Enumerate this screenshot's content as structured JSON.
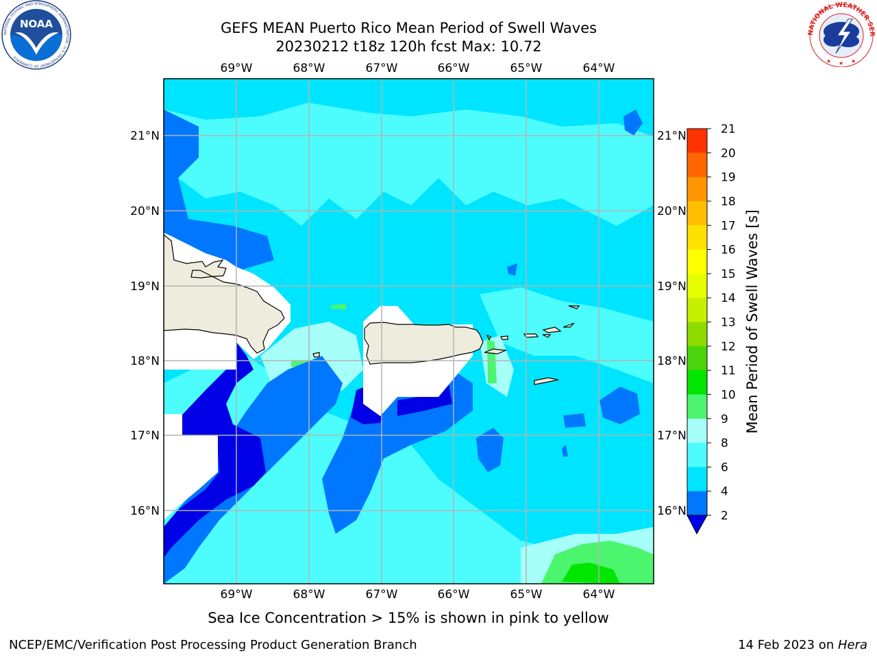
{
  "title": {
    "line1": "GEFS MEAN Puerto Rico Mean Period of Swell Waves",
    "line2": "20230212 t18z 120h fcst   Max: 10.72"
  },
  "map": {
    "lon_labels": [
      "69°W",
      "68°W",
      "67°W",
      "66°W",
      "65°W",
      "64°W"
    ],
    "lat_labels": [
      "21°N",
      "20°N",
      "19°N",
      "18°N",
      "17°N",
      "16°N"
    ],
    "extent": {
      "lon_min": -70.0,
      "lon_max": -63.25,
      "lat_min": 15.0,
      "lat_max": 21.75
    },
    "grid": true,
    "place_labels": {
      "hispaniola": "",
      "puerto_rico": ""
    }
  },
  "colorbar": {
    "title": "Mean Period of Swell Waves [s]",
    "ticks": [
      "21",
      "20",
      "19",
      "18",
      "17",
      "16",
      "15",
      "14",
      "13",
      "12",
      "11",
      "10",
      "9",
      "8",
      "6",
      "4",
      "2"
    ],
    "colors": [
      "#0000e6",
      "#0077ff",
      "#00e5ff",
      "#4dfdfd",
      "#a6fff8",
      "#4cf56e",
      "#00e600",
      "#4ad40b",
      "#8edb00",
      "#c6f000",
      "#e6ff00",
      "#ffff00",
      "#ffe000",
      "#ffbf00",
      "#ff9500",
      "#ff6600",
      "#ff3300",
      "#ff0000"
    ]
  },
  "note": "Sea Ice Concentration > 15% is shown in pink to yellow",
  "footer": {
    "left": "NCEP/EMC/Verification Post Processing Product Generation Branch",
    "date": "14 Feb 2023 on ",
    "host": "Hera"
  },
  "logos": {
    "noaa_text": "NOAA",
    "noaa_ring": "NATIONAL OCEANIC AND ATMOSPHERIC ADMINISTRATION · U.S. DEPARTMENT OF COMMERCE",
    "nws_ring": "NATIONAL WEATHER SERVICE"
  }
}
